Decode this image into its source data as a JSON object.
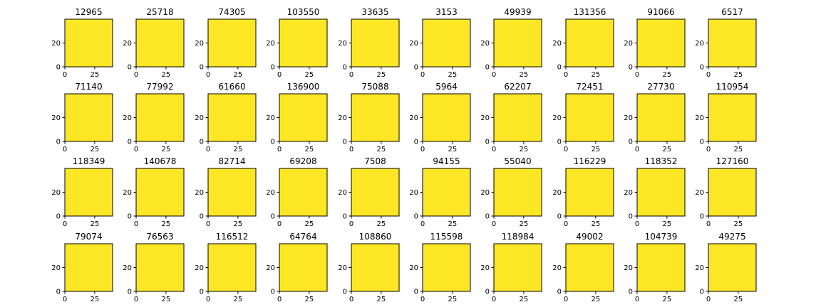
{
  "figure": {
    "colors": {
      "foreground": "#fde725",
      "stroke": "#440154",
      "axis": "#000000"
    }
  },
  "chart_data": {
    "type": "heatmap",
    "colormap": "viridis",
    "grid_rows": 4,
    "grid_cols": 10,
    "xlim": [
      0,
      40
    ],
    "ylim": [
      40,
      0
    ],
    "x_ticks": [
      0,
      25
    ],
    "y_ticks": [
      0,
      20
    ],
    "x_tick_labels": [
      "0",
      "25"
    ],
    "y_tick_labels": [
      "0",
      "20"
    ],
    "panels": [
      {
        "title": "12965"
      },
      {
        "title": "25718"
      },
      {
        "title": "74305"
      },
      {
        "title": "103550"
      },
      {
        "title": "33635"
      },
      {
        "title": "3153"
      },
      {
        "title": "49939"
      },
      {
        "title": "131356"
      },
      {
        "title": "91066"
      },
      {
        "title": "6517"
      },
      {
        "title": "71140"
      },
      {
        "title": "77992"
      },
      {
        "title": "61660"
      },
      {
        "title": "136900"
      },
      {
        "title": "75088"
      },
      {
        "title": "5964"
      },
      {
        "title": "62207"
      },
      {
        "title": "72451"
      },
      {
        "title": "27730"
      },
      {
        "title": "110954"
      },
      {
        "title": "118349"
      },
      {
        "title": "140678"
      },
      {
        "title": "82714"
      },
      {
        "title": "69208"
      },
      {
        "title": "7508"
      },
      {
        "title": "94155"
      },
      {
        "title": "55040"
      },
      {
        "title": "116229"
      },
      {
        "title": "118352"
      },
      {
        "title": "127160"
      },
      {
        "title": "79074"
      },
      {
        "title": "76563"
      },
      {
        "title": "116512"
      },
      {
        "title": "64764"
      },
      {
        "title": "108860"
      },
      {
        "title": "115598"
      },
      {
        "title": "118984"
      },
      {
        "title": "49002"
      },
      {
        "title": "104739"
      },
      {
        "title": "49275"
      }
    ]
  }
}
